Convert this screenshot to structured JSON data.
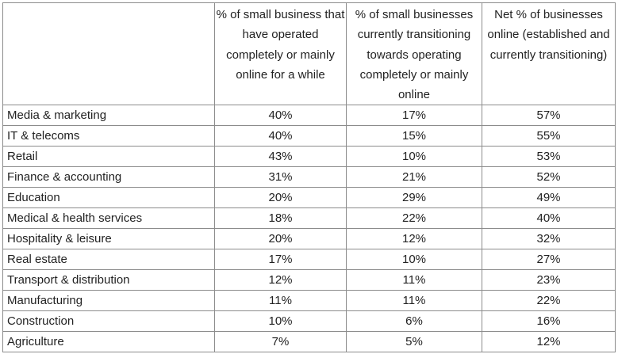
{
  "table": {
    "headers": [
      "",
      "% of small business that have operated completely or mainly online for a while",
      "% of small businesses currently transitioning towards operating completely or mainly online",
      "Net % of businesses online (established and currently transitioning)"
    ],
    "rows": [
      [
        "Media & marketing",
        "40%",
        "17%",
        "57%"
      ],
      [
        "IT & telecoms",
        "40%",
        "15%",
        "55%"
      ],
      [
        "Retail",
        "43%",
        "10%",
        "53%"
      ],
      [
        "Finance & accounting",
        "31%",
        "21%",
        "52%"
      ],
      [
        "Education",
        "20%",
        "29%",
        "49%"
      ],
      [
        "Medical & health services",
        "18%",
        "22%",
        "40%"
      ],
      [
        "Hospitality & leisure",
        "20%",
        "12%",
        "32%"
      ],
      [
        "Real estate",
        "17%",
        "10%",
        "27%"
      ],
      [
        "Transport & distribution",
        "12%",
        "11%",
        "23%"
      ],
      [
        "Manufacturing",
        "11%",
        "11%",
        "22%"
      ],
      [
        "Construction",
        "10%",
        "6%",
        "16%"
      ],
      [
        "Agriculture",
        "7%",
        "5%",
        "12%"
      ]
    ]
  }
}
